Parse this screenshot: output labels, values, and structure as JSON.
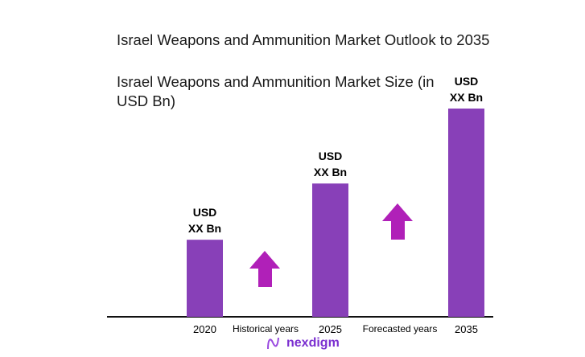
{
  "header": {
    "title": "Israel Weapons and Ammunition Market Outlook to 2035",
    "subtitle": "Israel Weapons and Ammunition Market Size (in USD Bn)"
  },
  "chart_data": {
    "type": "bar",
    "title": "Israel Weapons and Ammunition Market Size (in USD Bn)",
    "categories": [
      "2020",
      "2025",
      "2035"
    ],
    "values": [
      37,
      64,
      100
    ],
    "value_note_shown": [
      "USD XX Bn",
      "USD XX Bn",
      "USD XX Bn"
    ],
    "data_labels": [
      {
        "line1": "USD",
        "line2": "XX Bn"
      },
      {
        "line1": "USD",
        "line2": "XX Bn"
      },
      {
        "line1": "USD",
        "line2": "XX Bn"
      }
    ],
    "period_labels": [
      "Historical years",
      "Forecasted years"
    ],
    "ylim": [
      0,
      100
    ],
    "xlabel": "",
    "ylabel": "",
    "grid": false,
    "bar_color": "#8840b8",
    "arrow_color": "#b020b8"
  },
  "brand": {
    "name": "nexdigm",
    "color": "#7b2fd0"
  }
}
